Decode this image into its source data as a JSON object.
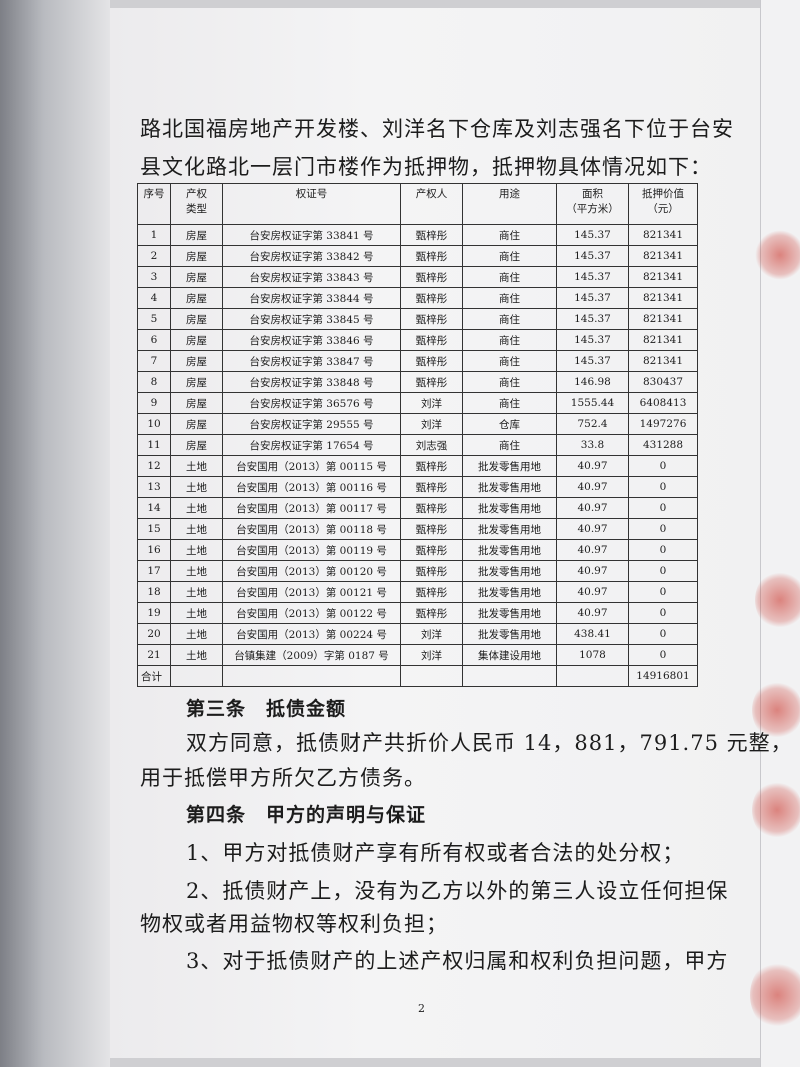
{
  "intro": [
    "路北国福房地产开发楼、刘洋名下仓库及刘志强名下位于台安",
    "县文化路北一层门市楼作为抵押物，抵押物具体情况如下："
  ],
  "table": {
    "header": [
      [
        "序号"
      ],
      [
        "产权",
        "类型"
      ],
      [
        "权证号"
      ],
      [
        "产权人"
      ],
      [
        "用途"
      ],
      [
        "面积",
        "（平方米）"
      ],
      [
        "抵押价值",
        "（元）"
      ]
    ],
    "rows": [
      [
        "1",
        "房屋",
        "台安房权证字第 33841 号",
        "甄梓彤",
        "商住",
        "145.37",
        "821341"
      ],
      [
        "2",
        "房屋",
        "台安房权证字第 33842 号",
        "甄梓彤",
        "商住",
        "145.37",
        "821341"
      ],
      [
        "3",
        "房屋",
        "台安房权证字第 33843 号",
        "甄梓彤",
        "商住",
        "145.37",
        "821341"
      ],
      [
        "4",
        "房屋",
        "台安房权证字第 33844 号",
        "甄梓彤",
        "商住",
        "145.37",
        "821341"
      ],
      [
        "5",
        "房屋",
        "台安房权证字第 33845 号",
        "甄梓彤",
        "商住",
        "145.37",
        "821341"
      ],
      [
        "6",
        "房屋",
        "台安房权证字第 33846 号",
        "甄梓彤",
        "商住",
        "145.37",
        "821341"
      ],
      [
        "7",
        "房屋",
        "台安房权证字第 33847 号",
        "甄梓彤",
        "商住",
        "145.37",
        "821341"
      ],
      [
        "8",
        "房屋",
        "台安房权证字第 33848 号",
        "甄梓彤",
        "商住",
        "146.98",
        "830437"
      ],
      [
        "9",
        "房屋",
        "台安房权证字第 36576 号",
        "刘洋",
        "商住",
        "1555.44",
        "6408413"
      ],
      [
        "10",
        "房屋",
        "台安房权证字第 29555 号",
        "刘洋",
        "仓库",
        "752.4",
        "1497276"
      ],
      [
        "11",
        "房屋",
        "台安房权证字第 17654 号",
        "刘志强",
        "商住",
        "33.8",
        "431288"
      ],
      [
        "12",
        "土地",
        "台安国用（2013）第 00115 号",
        "甄梓彤",
        "批发零售用地",
        "40.97",
        "0"
      ],
      [
        "13",
        "土地",
        "台安国用（2013）第 00116 号",
        "甄梓彤",
        "批发零售用地",
        "40.97",
        "0"
      ],
      [
        "14",
        "土地",
        "台安国用（2013）第 00117 号",
        "甄梓彤",
        "批发零售用地",
        "40.97",
        "0"
      ],
      [
        "15",
        "土地",
        "台安国用（2013）第 00118 号",
        "甄梓彤",
        "批发零售用地",
        "40.97",
        "0"
      ],
      [
        "16",
        "土地",
        "台安国用（2013）第 00119 号",
        "甄梓彤",
        "批发零售用地",
        "40.97",
        "0"
      ],
      [
        "17",
        "土地",
        "台安国用（2013）第 00120 号",
        "甄梓彤",
        "批发零售用地",
        "40.97",
        "0"
      ],
      [
        "18",
        "土地",
        "台安国用（2013）第 00121 号",
        "甄梓彤",
        "批发零售用地",
        "40.97",
        "0"
      ],
      [
        "19",
        "土地",
        "台安国用（2013）第 00122 号",
        "甄梓彤",
        "批发零售用地",
        "40.97",
        "0"
      ],
      [
        "20",
        "土地",
        "台安国用（2013）第 00224 号",
        "刘洋",
        "批发零售用地",
        "438.41",
        "0"
      ],
      [
        "21",
        "土地",
        "台镇集建（2009）字第 0187 号",
        "刘洋",
        "集体建设用地",
        "1078",
        "0"
      ]
    ],
    "total": {
      "label": "合计",
      "value": "14916801"
    }
  },
  "section3": {
    "heading": "第三条　抵债金额",
    "lines": [
      "双方同意，抵债财产共折价人民币 14，881，791.75 元整，",
      "用于抵偿甲方所欠乙方债务。"
    ]
  },
  "section4": {
    "heading": "第四条　甲方的声明与保证",
    "lines": [
      "1、甲方对抵债财产享有所有权或者合法的处分权；",
      "2、抵债财产上，没有为乙方以外的第三人设立任何担保",
      "物权或者用益物权等权利负担；",
      "3、对于抵债财产的上述产权归属和权利负担问题，甲方"
    ]
  },
  "page_number": "2"
}
